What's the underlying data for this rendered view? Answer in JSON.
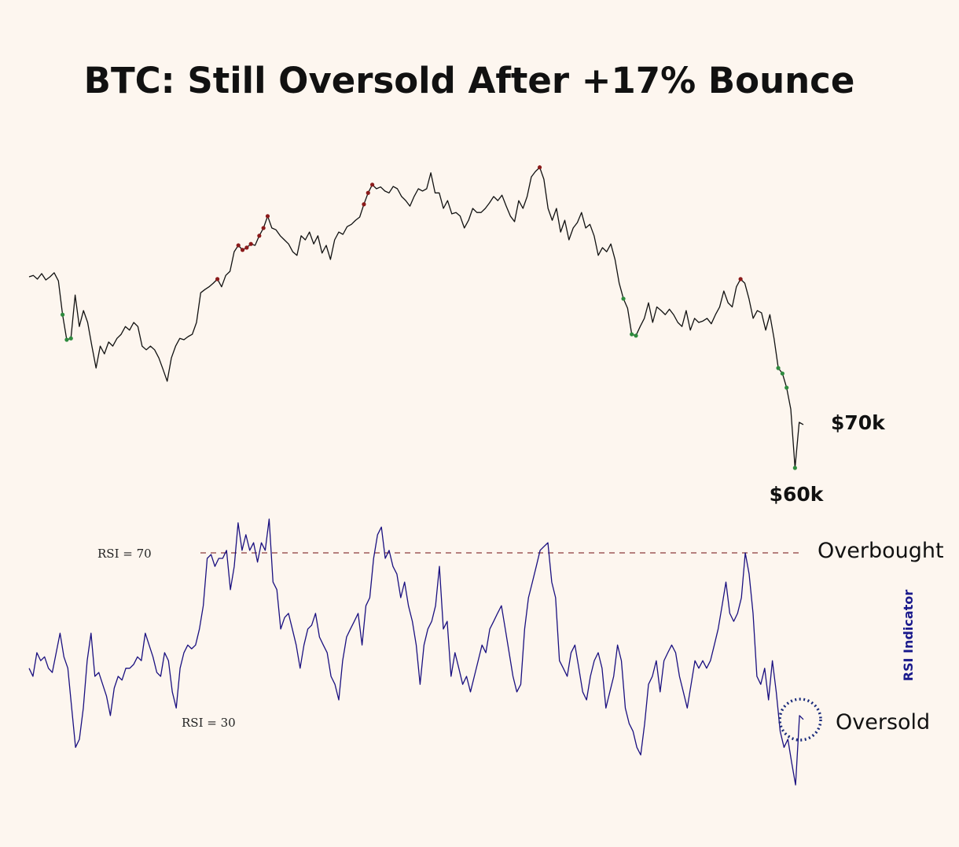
{
  "chart_data": [
    {
      "type": "line",
      "title": "BTC: Still Oversold After +17% Bounce",
      "ylabel": "",
      "unit": "$k",
      "annotations": {
        "last": "$70k",
        "low": "$60k"
      },
      "line_color": "#111111",
      "overbought_marker_color": "#8b1a1a",
      "oversold_marker_color": "#2e8b3e",
      "values": [
        101.9,
        102.2,
        101.4,
        102.6,
        101.2,
        101.9,
        102.8,
        101.0,
        93.6,
        88.1,
        88.4,
        97.9,
        91.0,
        94.5,
        91.9,
        86.7,
        81.9,
        86.7,
        85.0,
        87.6,
        86.7,
        88.4,
        89.3,
        91.0,
        90.2,
        91.9,
        91.0,
        86.7,
        85.9,
        86.7,
        85.9,
        84.1,
        81.6,
        79.0,
        84.1,
        86.7,
        88.4,
        88.1,
        88.8,
        89.3,
        91.9,
        98.4,
        99.1,
        99.7,
        100.5,
        101.4,
        99.7,
        102.2,
        103.1,
        107.4,
        108.8,
        107.8,
        108.3,
        109.1,
        108.8,
        110.9,
        112.6,
        115.2,
        112.6,
        112.2,
        110.9,
        110.0,
        109.1,
        107.4,
        106.6,
        110.9,
        110.0,
        111.7,
        109.1,
        110.9,
        107.1,
        108.8,
        105.7,
        110.0,
        111.7,
        111.2,
        112.9,
        113.4,
        114.3,
        115.0,
        117.8,
        120.3,
        122.1,
        121.2,
        121.6,
        120.7,
        120.3,
        121.7,
        121.2,
        119.5,
        118.6,
        117.4,
        119.5,
        121.2,
        120.7,
        121.2,
        124.7,
        120.3,
        120.3,
        116.9,
        118.6,
        115.7,
        116.0,
        115.2,
        112.6,
        114.3,
        116.9,
        116.0,
        116.0,
        116.9,
        118.1,
        119.5,
        118.6,
        119.8,
        117.4,
        115.2,
        114.0,
        118.6,
        116.9,
        119.5,
        123.8,
        125.0,
        125.9,
        123.3,
        116.9,
        114.3,
        116.9,
        111.7,
        114.3,
        110.0,
        112.6,
        113.8,
        116.0,
        112.6,
        113.4,
        110.9,
        106.6,
        108.3,
        107.4,
        109.1,
        105.7,
        100.5,
        97.1,
        95.0,
        89.3,
        89.0,
        91.0,
        92.8,
        96.2,
        91.9,
        95.3,
        94.5,
        93.6,
        94.8,
        93.6,
        91.9,
        91.0,
        94.5,
        90.2,
        92.8,
        91.9,
        92.2,
        92.8,
        91.6,
        93.6,
        95.3,
        98.8,
        96.2,
        95.3,
        99.7,
        101.4,
        100.5,
        97.1,
        92.8,
        94.5,
        94.0,
        90.2,
        93.6,
        88.4,
        81.9,
        80.7,
        77.6,
        72.9,
        60.0,
        70.0,
        69.5
      ],
      "overbought_points": [
        45,
        50,
        51,
        52,
        53,
        55,
        56,
        57,
        80,
        81,
        82,
        122,
        170
      ],
      "oversold_points": [
        8,
        9,
        10,
        142,
        144,
        145,
        179,
        180,
        181,
        183
      ]
    },
    {
      "type": "line",
      "ylabel": "RSI Indicator",
      "line_color": "#1a1080",
      "reference_lines": [
        {
          "value": 70,
          "label": "RSI = 70",
          "zone": "Overbought",
          "color": "#8b3a3a"
        },
        {
          "value": 30,
          "label": "RSI = 30",
          "zone": "Oversold"
        }
      ],
      "highlight_color": "#1a2a7a",
      "values": [
        42.7,
        40.8,
        46.4,
        44.5,
        45.4,
        42.7,
        41.7,
        46.4,
        51.0,
        45.4,
        42.7,
        33.3,
        24.0,
        25.9,
        33.3,
        44.5,
        51.0,
        40.8,
        41.7,
        38.9,
        36.1,
        31.5,
        38.0,
        40.8,
        39.9,
        42.7,
        42.7,
        43.6,
        45.4,
        44.5,
        51.0,
        48.2,
        45.4,
        41.7,
        40.8,
        46.4,
        44.5,
        37.1,
        33.3,
        42.7,
        46.4,
        48.2,
        47.3,
        48.2,
        52.0,
        57.5,
        68.7,
        69.6,
        66.8,
        68.7,
        68.7,
        70.6,
        61.3,
        66.8,
        77.1,
        70.6,
        74.3,
        70.6,
        72.4,
        67.8,
        72.4,
        70.6,
        78.0,
        63.1,
        61.3,
        52.0,
        54.7,
        55.7,
        52.0,
        48.2,
        42.7,
        48.2,
        52.0,
        52.9,
        55.7,
        50.1,
        48.2,
        46.4,
        40.8,
        38.9,
        35.2,
        44.5,
        50.1,
        52.0,
        53.8,
        55.7,
        48.2,
        57.5,
        59.4,
        68.7,
        74.3,
        76.1,
        68.7,
        70.6,
        66.8,
        65.0,
        59.4,
        63.1,
        57.5,
        53.8,
        48.2,
        38.9,
        48.2,
        52.0,
        53.8,
        57.5,
        66.8,
        52.0,
        53.8,
        40.8,
        46.4,
        42.7,
        38.9,
        40.8,
        37.1,
        40.8,
        44.5,
        48.2,
        46.4,
        52.0,
        53.8,
        55.7,
        57.5,
        52.0,
        46.4,
        40.8,
        37.1,
        38.9,
        52.0,
        59.4,
        63.1,
        66.8,
        70.6,
        71.5,
        72.4,
        63.1,
        59.4,
        44.5,
        42.7,
        40.8,
        46.4,
        48.2,
        42.7,
        37.1,
        35.2,
        40.8,
        44.5,
        46.4,
        42.7,
        33.3,
        37.1,
        40.8,
        48.2,
        44.5,
        33.3,
        29.6,
        27.8,
        24.0,
        22.2,
        29.6,
        38.9,
        40.8,
        44.5,
        37.1,
        44.5,
        46.4,
        48.2,
        46.4,
        40.8,
        37.1,
        33.3,
        38.9,
        44.5,
        42.7,
        44.5,
        42.7,
        44.5,
        48.2,
        52.0,
        57.5,
        63.1,
        55.7,
        53.8,
        55.7,
        59.4,
        70.0,
        65.0,
        55.7,
        40.8,
        38.9,
        42.7,
        35.2,
        44.5,
        37.1,
        27.8,
        24.0,
        25.9,
        20.3,
        15.1,
        31.5,
        30.6
      ]
    }
  ]
}
